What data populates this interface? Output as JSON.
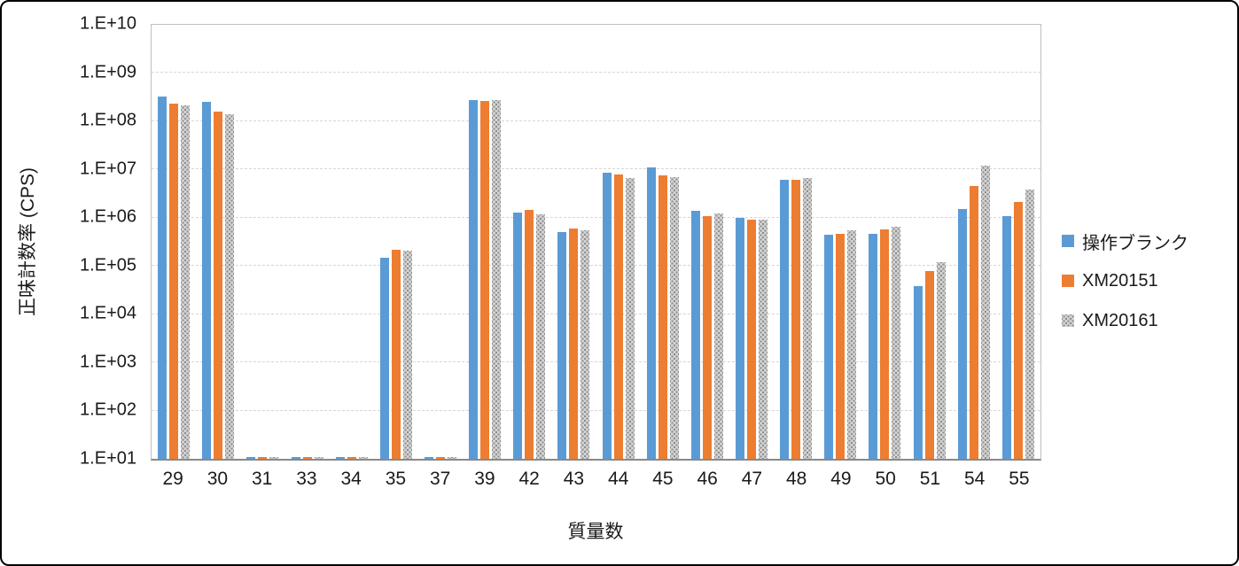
{
  "chart_data": {
    "type": "bar",
    "scale": "log10",
    "xlabel": "質量数",
    "ylabel": "正味計数率 (CPS)",
    "ylim": [
      10.0,
      10000000000.0
    ],
    "grid": true,
    "legend_position": "right",
    "y_tick_labels": [
      "1.E+10",
      "1.E+09",
      "1.E+08",
      "1.E+07",
      "1.E+06",
      "1.E+05",
      "1.E+04",
      "1.E+03",
      "1.E+02",
      "1.E+01"
    ],
    "categories": [
      "29",
      "30",
      "31",
      "33",
      "34",
      "35",
      "37",
      "39",
      "42",
      "43",
      "44",
      "45",
      "46",
      "47",
      "48",
      "49",
      "50",
      "51",
      "54",
      "55"
    ],
    "series": [
      {
        "name": "操作ブランク",
        "color": "#5B9BD5",
        "pattern": "solid",
        "values": [
          330000000.0,
          250000000.0,
          11,
          11,
          11,
          150000.0,
          11,
          270000000.0,
          1300000.0,
          510000.0,
          8500000.0,
          11000000.0,
          1400000.0,
          1000000.0,
          6100000.0,
          450000.0,
          470000.0,
          38000.0,
          1500000.0,
          1100000.0
        ]
      },
      {
        "name": "XM20151",
        "color": "#ED7D31",
        "pattern": "solid",
        "values": [
          230000000.0,
          160000000.0,
          11,
          11,
          11,
          220000.0,
          11,
          260000000.0,
          1450000.0,
          600000.0,
          8000000.0,
          7600000.0,
          1100000.0,
          900000.0,
          6100000.0,
          470000.0,
          580000.0,
          80000.0,
          4500000.0,
          2100000.0
        ]
      },
      {
        "name": "XM20161",
        "color": "#A6A6A6",
        "pattern": "dotted-gray",
        "values": [
          210000000.0,
          140000000.0,
          11,
          11,
          11,
          210000.0,
          11,
          270000000.0,
          1150000.0,
          540000.0,
          6600000.0,
          6900000.0,
          1200000.0,
          930000.0,
          6700000.0,
          540000.0,
          650000.0,
          120000.0,
          12000000.0,
          3800000.0
        ]
      }
    ]
  }
}
